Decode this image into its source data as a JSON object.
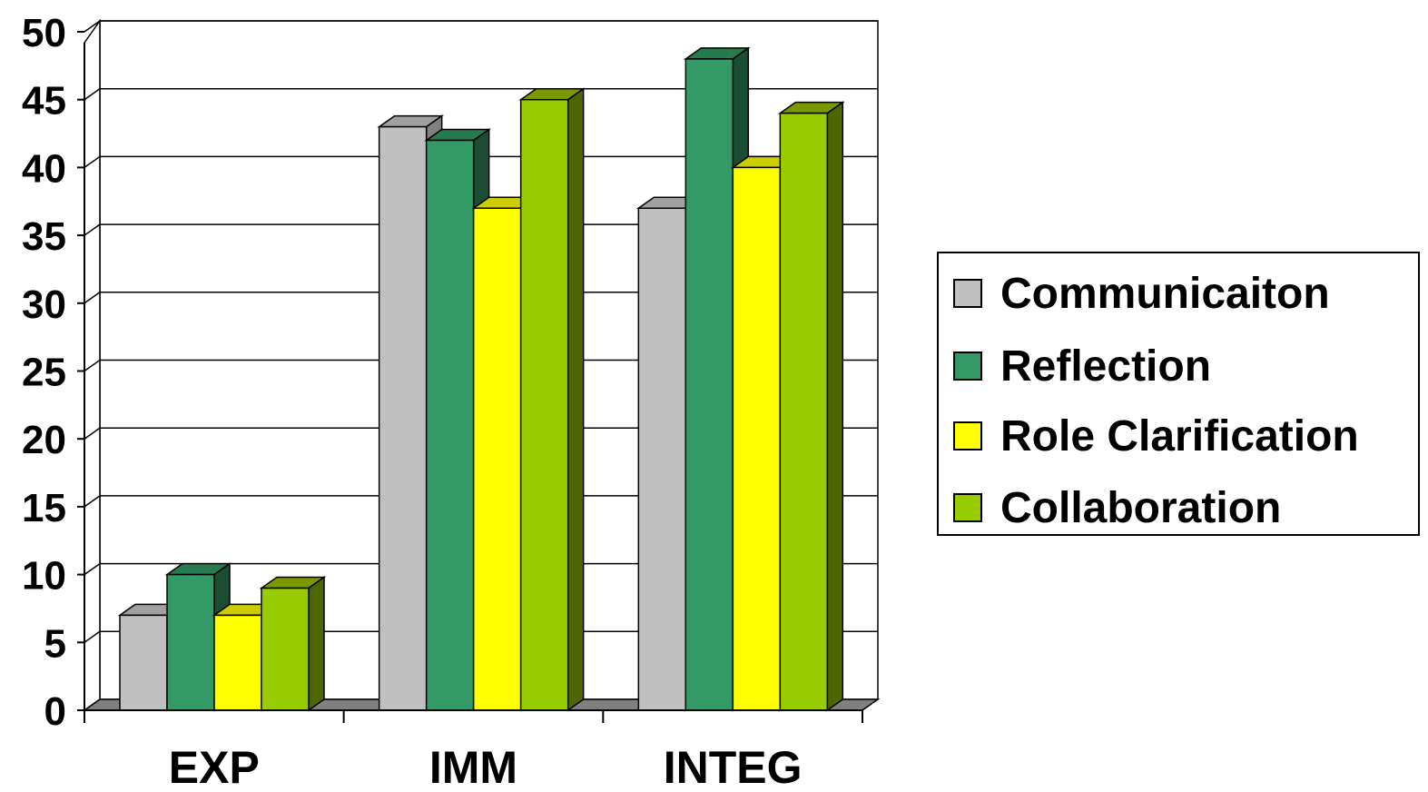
{
  "chart_data": {
    "type": "bar",
    "style": "3d-clustered",
    "categories": [
      "EXP",
      "IMM",
      "INTEG"
    ],
    "series": [
      {
        "name": "Communicaiton",
        "values": [
          7,
          43,
          37
        ],
        "color": "#c0c0c0",
        "side": "#808080",
        "top": "#a0a0a0"
      },
      {
        "name": "Reflection",
        "values": [
          10,
          42,
          48
        ],
        "color": "#339966",
        "side": "#1a4d33",
        "top": "#267a4d"
      },
      {
        "name": "Role Clarification",
        "values": [
          7,
          37,
          40
        ],
        "color": "#ffff00",
        "side": "#999900",
        "top": "#cccc00"
      },
      {
        "name": "Collaboration",
        "values": [
          9,
          45,
          44
        ],
        "color": "#99cc00",
        "side": "#4d6600",
        "top": "#7a9900"
      }
    ],
    "y_ticks": [
      "0",
      "5",
      "10",
      "15",
      "20",
      "25",
      "30",
      "35",
      "40",
      "45",
      "50"
    ],
    "ylim": [
      0,
      50
    ],
    "grid": true,
    "legend_position": "right",
    "title": "",
    "xlabel": "",
    "ylabel": ""
  }
}
